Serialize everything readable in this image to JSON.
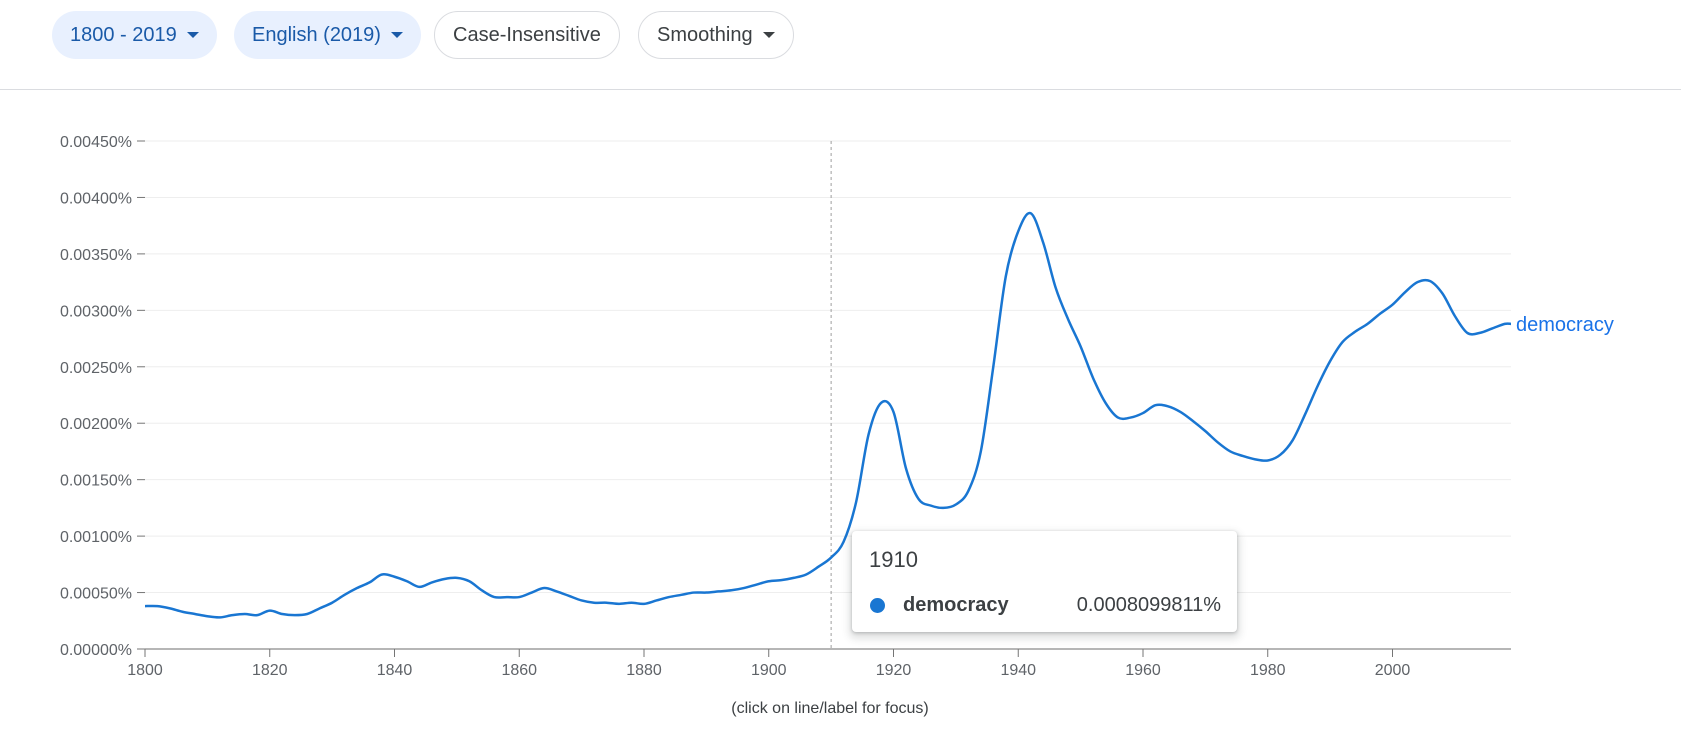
{
  "toolbar": {
    "year_range": "1800 - 2019",
    "corpus": "English (2019)",
    "case": "Case-Insensitive",
    "smoothing": "Smoothing"
  },
  "tooltip": {
    "year": "1910",
    "term": "democracy",
    "value": "0.0008099811%"
  },
  "hint": "(click on line/label for focus)",
  "colors": {
    "series": "#1976d2",
    "label": "#1a73e8",
    "grid": "#eeeeee",
    "axis": "#9e9e9e"
  },
  "chart_data": {
    "type": "line",
    "xlim": [
      1800,
      2019
    ],
    "ylim": [
      0,
      0.0045
    ],
    "y_ticks": [
      "0.00000%",
      "0.00050%",
      "0.00100%",
      "0.00150%",
      "0.00200%",
      "0.00250%",
      "0.00300%",
      "0.00350%",
      "0.00400%",
      "0.00450%"
    ],
    "x_ticks": [
      "1800",
      "1820",
      "1840",
      "1860",
      "1880",
      "1900",
      "1920",
      "1940",
      "1960",
      "1980",
      "2000"
    ],
    "grid": true,
    "focus_year": 1910,
    "series": [
      {
        "name": "democracy",
        "points": [
          [
            1800,
            0.00038
          ],
          [
            1802,
            0.00038
          ],
          [
            1804,
            0.00036
          ],
          [
            1806,
            0.00033
          ],
          [
            1808,
            0.00031
          ],
          [
            1810,
            0.00029
          ],
          [
            1812,
            0.00028
          ],
          [
            1814,
            0.0003
          ],
          [
            1816,
            0.00031
          ],
          [
            1818,
            0.0003
          ],
          [
            1820,
            0.00034
          ],
          [
            1822,
            0.00031
          ],
          [
            1824,
            0.0003
          ],
          [
            1826,
            0.00031
          ],
          [
            1828,
            0.00036
          ],
          [
            1830,
            0.00041
          ],
          [
            1832,
            0.00048
          ],
          [
            1834,
            0.00054
          ],
          [
            1836,
            0.00059
          ],
          [
            1838,
            0.00066
          ],
          [
            1840,
            0.00064
          ],
          [
            1842,
            0.0006
          ],
          [
            1844,
            0.00055
          ],
          [
            1846,
            0.00059
          ],
          [
            1848,
            0.00062
          ],
          [
            1850,
            0.00063
          ],
          [
            1852,
            0.0006
          ],
          [
            1854,
            0.00052
          ],
          [
            1856,
            0.00046
          ],
          [
            1858,
            0.00046
          ],
          [
            1860,
            0.00046
          ],
          [
            1862,
            0.0005
          ],
          [
            1864,
            0.00054
          ],
          [
            1866,
            0.00051
          ],
          [
            1868,
            0.00047
          ],
          [
            1870,
            0.00043
          ],
          [
            1872,
            0.00041
          ],
          [
            1874,
            0.00041
          ],
          [
            1876,
            0.0004
          ],
          [
            1878,
            0.00041
          ],
          [
            1880,
            0.0004
          ],
          [
            1882,
            0.00043
          ],
          [
            1884,
            0.00046
          ],
          [
            1886,
            0.00048
          ],
          [
            1888,
            0.0005
          ],
          [
            1890,
            0.0005
          ],
          [
            1892,
            0.00051
          ],
          [
            1894,
            0.00052
          ],
          [
            1896,
            0.00054
          ],
          [
            1898,
            0.00057
          ],
          [
            1900,
            0.0006
          ],
          [
            1902,
            0.00061
          ],
          [
            1904,
            0.00063
          ],
          [
            1906,
            0.00066
          ],
          [
            1908,
            0.00073
          ],
          [
            1910,
            0.00081
          ],
          [
            1912,
            0.00095
          ],
          [
            1914,
            0.0013
          ],
          [
            1916,
            0.0019
          ],
          [
            1918,
            0.00218
          ],
          [
            1920,
            0.0021
          ],
          [
            1922,
            0.0016
          ],
          [
            1924,
            0.00133
          ],
          [
            1926,
            0.00127
          ],
          [
            1928,
            0.00125
          ],
          [
            1930,
            0.00128
          ],
          [
            1932,
            0.0014
          ],
          [
            1934,
            0.00175
          ],
          [
            1936,
            0.0025
          ],
          [
            1938,
            0.0033
          ],
          [
            1940,
            0.0037
          ],
          [
            1942,
            0.00386
          ],
          [
            1944,
            0.0036
          ],
          [
            1946,
            0.0032
          ],
          [
            1948,
            0.00292
          ],
          [
            1950,
            0.00268
          ],
          [
            1952,
            0.0024
          ],
          [
            1954,
            0.00218
          ],
          [
            1956,
            0.00205
          ],
          [
            1958,
            0.00205
          ],
          [
            1960,
            0.00209
          ],
          [
            1962,
            0.00216
          ],
          [
            1964,
            0.00215
          ],
          [
            1966,
            0.0021
          ],
          [
            1968,
            0.00202
          ],
          [
            1970,
            0.00193
          ],
          [
            1972,
            0.00183
          ],
          [
            1974,
            0.00175
          ],
          [
            1976,
            0.00171
          ],
          [
            1978,
            0.00168
          ],
          [
            1980,
            0.00167
          ],
          [
            1982,
            0.00172
          ],
          [
            1984,
            0.00185
          ],
          [
            1986,
            0.00208
          ],
          [
            1988,
            0.00233
          ],
          [
            1990,
            0.00255
          ],
          [
            1992,
            0.00272
          ],
          [
            1994,
            0.00281
          ],
          [
            1996,
            0.00288
          ],
          [
            1998,
            0.00297
          ],
          [
            2000,
            0.00305
          ],
          [
            2002,
            0.00316
          ],
          [
            2004,
            0.00325
          ],
          [
            2006,
            0.00326
          ],
          [
            2008,
            0.00315
          ],
          [
            2010,
            0.00295
          ],
          [
            2012,
            0.0028
          ],
          [
            2014,
            0.0028
          ],
          [
            2016,
            0.00284
          ],
          [
            2018,
            0.00288
          ],
          [
            2019,
            0.00288
          ]
        ]
      }
    ]
  }
}
